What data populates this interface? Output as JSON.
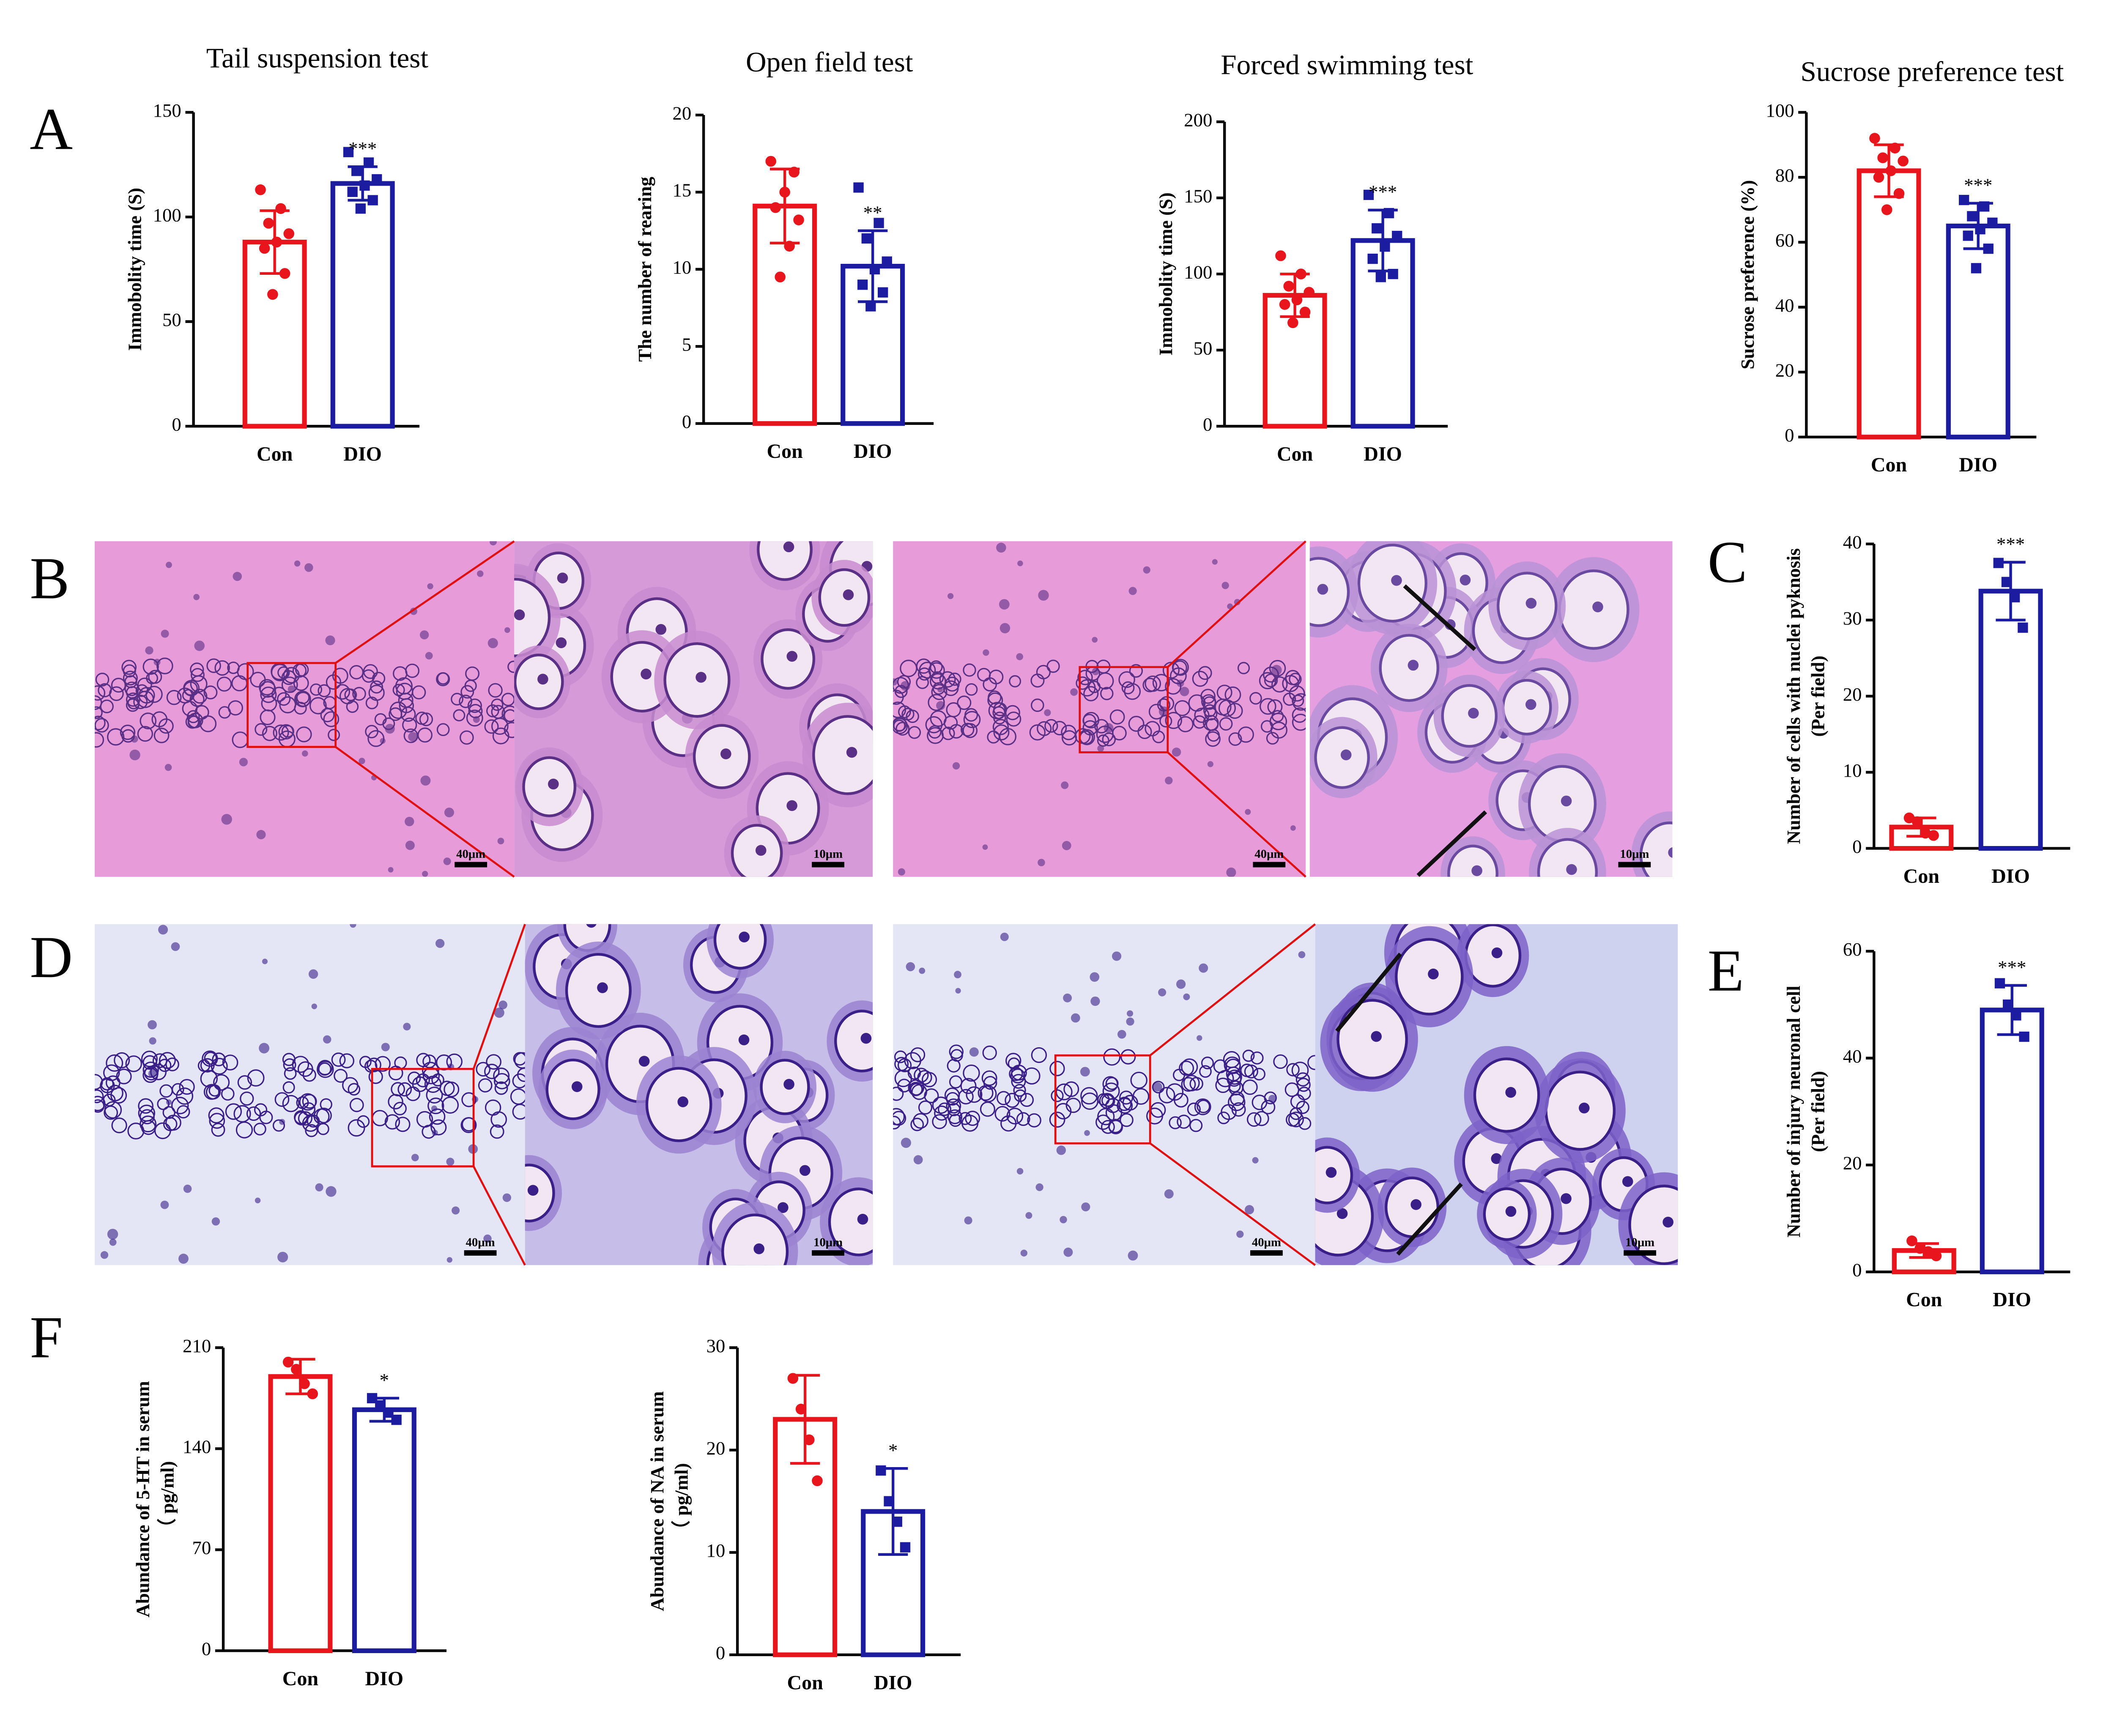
{
  "panel_labels": [
    "A",
    "B",
    "C",
    "D",
    "E",
    "F"
  ],
  "micrographs": {
    "scale_labels": [
      "40μm",
      "10μm",
      "40μm",
      "10μm",
      "40μm",
      "10μm",
      "40μm",
      "10μm"
    ]
  },
  "chart_data": [
    {
      "type": "bar",
      "title": "Tail suspension test",
      "ylabel": "Immobolity time (S)",
      "categories": [
        "Con",
        "DIO"
      ],
      "colors": [
        "#e8151c",
        "#1c1ca0"
      ],
      "values": [
        88,
        116
      ],
      "errors": [
        15,
        8
      ],
      "annotation": "***",
      "points": [
        [
          113,
          104,
          97,
          92,
          88,
          85,
          73,
          63
        ],
        [
          131,
          126,
          122,
          118,
          115,
          112,
          108,
          104
        ]
      ],
      "ylim": [
        0,
        150
      ],
      "yticks": [
        0,
        50,
        100,
        150
      ]
    },
    {
      "type": "bar",
      "title": "Open field test",
      "ylabel": "The number of rearing",
      "categories": [
        "Con",
        "DIO"
      ],
      "colors": [
        "#e8151c",
        "#1c1ca0"
      ],
      "values": [
        14.1,
        10.2
      ],
      "errors": [
        2.4,
        2.3
      ],
      "annotation": "**",
      "points": [
        [
          17,
          16.3,
          15,
          14,
          13.2,
          11.5,
          9.5
        ],
        [
          15.3,
          13,
          12,
          10.5,
          10,
          9,
          8.5,
          7.6
        ]
      ],
      "ylim": [
        0,
        20
      ],
      "yticks": [
        0,
        5,
        10,
        15,
        20
      ]
    },
    {
      "type": "bar",
      "title": "Forced swimming test",
      "ylabel": "Immobolity time (S)",
      "categories": [
        "Con",
        "DIO"
      ],
      "colors": [
        "#e8151c",
        "#1c1ca0"
      ],
      "values": [
        86,
        122
      ],
      "errors": [
        14,
        20
      ],
      "annotation": "***",
      "points": [
        [
          112,
          100,
          92,
          88,
          83,
          80,
          75,
          68
        ],
        [
          152,
          140,
          130,
          125,
          118,
          110,
          100,
          98
        ]
      ],
      "ylim": [
        0,
        200
      ],
      "yticks": [
        0,
        50,
        100,
        150,
        200
      ]
    },
    {
      "type": "bar",
      "title": "Sucrose preference test",
      "ylabel": "Sucrose preference (%)",
      "categories": [
        "Con",
        "DIO"
      ],
      "colors": [
        "#e8151c",
        "#1c1ca0"
      ],
      "values": [
        82,
        65
      ],
      "errors": [
        8,
        7
      ],
      "annotation": "***",
      "points": [
        [
          92,
          89,
          86,
          85,
          82,
          80,
          75,
          70
        ],
        [
          73,
          71,
          68,
          66,
          64,
          62,
          58,
          52
        ]
      ],
      "ylim": [
        0,
        100
      ],
      "yticks": [
        0,
        20,
        40,
        60,
        80,
        100
      ]
    },
    {
      "type": "bar",
      "ylabel": [
        "Number of cells with nuclei pyknosis",
        "(Per field)"
      ],
      "categories": [
        "Con",
        "DIO"
      ],
      "colors": [
        "#e8151c",
        "#1c1ca0"
      ],
      "values": [
        2.8,
        33.8
      ],
      "errors": [
        1.2,
        3.8
      ],
      "annotation": "***",
      "points": [
        [
          4,
          3.5,
          2,
          1.7
        ],
        [
          37.5,
          35,
          33,
          29
        ]
      ],
      "ylim": [
        0,
        40
      ],
      "yticks": [
        0,
        10,
        20,
        30,
        40
      ]
    },
    {
      "type": "bar",
      "ylabel": [
        "Number of injury neuronal cell",
        "(Per field)"
      ],
      "categories": [
        "Con",
        "DIO"
      ],
      "colors": [
        "#e8151c",
        "#1c1ca0"
      ],
      "values": [
        4,
        49
      ],
      "errors": [
        1.3,
        4.6
      ],
      "annotation": "***",
      "points": [
        [
          5.8,
          4.4,
          3.8,
          3
        ],
        [
          54,
          50,
          48,
          44
        ]
      ],
      "ylim": [
        0,
        60
      ],
      "yticks": [
        0,
        20,
        40,
        60
      ]
    },
    {
      "type": "bar",
      "ylabel": [
        "Abundance of 5-HT in serum",
        "（ pg/ml)"
      ],
      "categories": [
        "Con",
        "DIO"
      ],
      "colors": [
        "#e8151c",
        "#1c1ca0"
      ],
      "values": [
        190,
        167
      ],
      "errors": [
        12,
        8
      ],
      "annotation": "*",
      "points": [
        [
          200,
          195,
          185,
          178
        ],
        [
          175,
          170,
          165,
          160
        ]
      ],
      "ylim": [
        0,
        210
      ],
      "yticks": [
        0,
        70,
        140,
        210
      ]
    },
    {
      "type": "bar",
      "ylabel": [
        "Abundance of NA in serum",
        "（ pg/ml)"
      ],
      "categories": [
        "Con",
        "DIO"
      ],
      "colors": [
        "#e8151c",
        "#1c1ca0"
      ],
      "values": [
        23,
        14
      ],
      "errors": [
        4.3,
        4.2
      ],
      "annotation": "*",
      "points": [
        [
          27,
          24,
          21,
          17
        ],
        [
          18,
          15,
          13,
          10.5
        ]
      ],
      "ylim": [
        0,
        30
      ],
      "yticks": [
        0,
        10,
        20,
        30
      ]
    }
  ]
}
